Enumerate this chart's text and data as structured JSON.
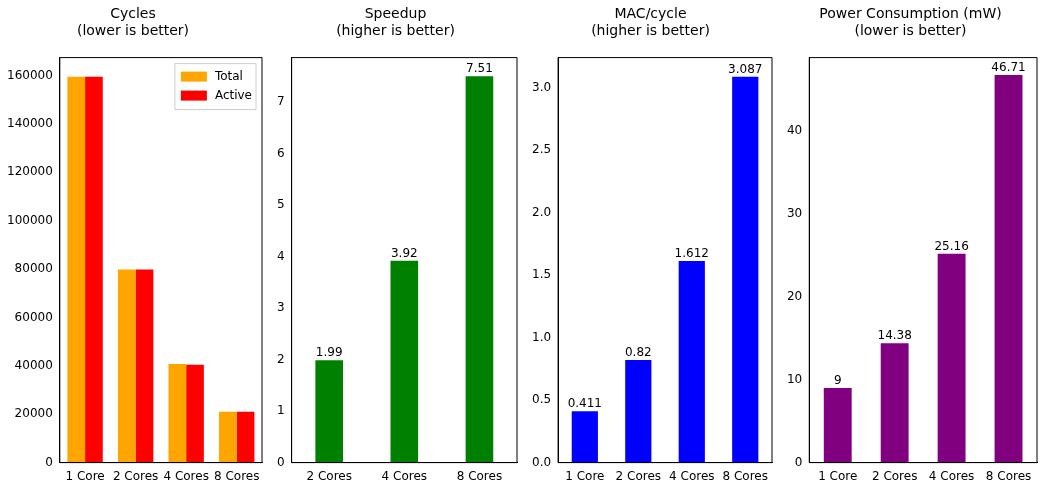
{
  "chart_data": [
    {
      "type": "bar",
      "title": "Cycles\n(lower is better)",
      "categories": [
        "1 Core",
        "2 Cores",
        "4 Cores",
        "8 Cores"
      ],
      "series": [
        {
          "name": "Total",
          "color": "#ffa500",
          "values": [
            159500,
            79800,
            40800,
            21000
          ]
        },
        {
          "name": "Active",
          "color": "#ff0000",
          "values": [
            159500,
            79800,
            40400,
            21000
          ]
        }
      ],
      "ylim": [
        0,
        167400
      ],
      "yticks": [
        0,
        20000,
        40000,
        60000,
        80000,
        100000,
        120000,
        140000,
        160000
      ],
      "legend": "top right"
    },
    {
      "type": "bar",
      "title": "Speedup\n(higher is better)",
      "categories": [
        "2 Cores",
        "4 Cores",
        "8 Cores"
      ],
      "values": [
        1.99,
        3.92,
        7.51
      ],
      "color": "#008000",
      "ylim": [
        0,
        7.87
      ],
      "yticks": [
        0,
        1,
        2,
        3,
        4,
        5,
        6,
        7
      ],
      "data_labels": true
    },
    {
      "type": "bar",
      "title": "MAC/cycle\n(higher is better)",
      "categories": [
        "1 Core",
        "2 Cores",
        "4 Cores",
        "8 Cores"
      ],
      "values": [
        0.411,
        0.82,
        1.612,
        3.087
      ],
      "color": "#0000ff",
      "ylim": [
        0,
        3.24
      ],
      "yticks": [
        {
          "value": 0,
          "label": "0.0"
        },
        0.5,
        {
          "value": 1,
          "label": "1.0"
        },
        1.5,
        {
          "value": 2,
          "label": "2.0"
        },
        2.5,
        {
          "value": 3,
          "label": "3.0"
        }
      ],
      "data_labels": true
    },
    {
      "type": "bar",
      "title": "Power Consumption (mW)\n(lower is better)",
      "categories": [
        "1 Core",
        "2 Cores",
        "4 Cores",
        "8 Cores"
      ],
      "values": [
        9,
        14.38,
        25.16,
        46.71
      ],
      "color": "#800080",
      "ylim": [
        0,
        48.8
      ],
      "yticks": [
        0,
        10,
        20,
        30,
        40
      ],
      "data_labels": true
    }
  ]
}
